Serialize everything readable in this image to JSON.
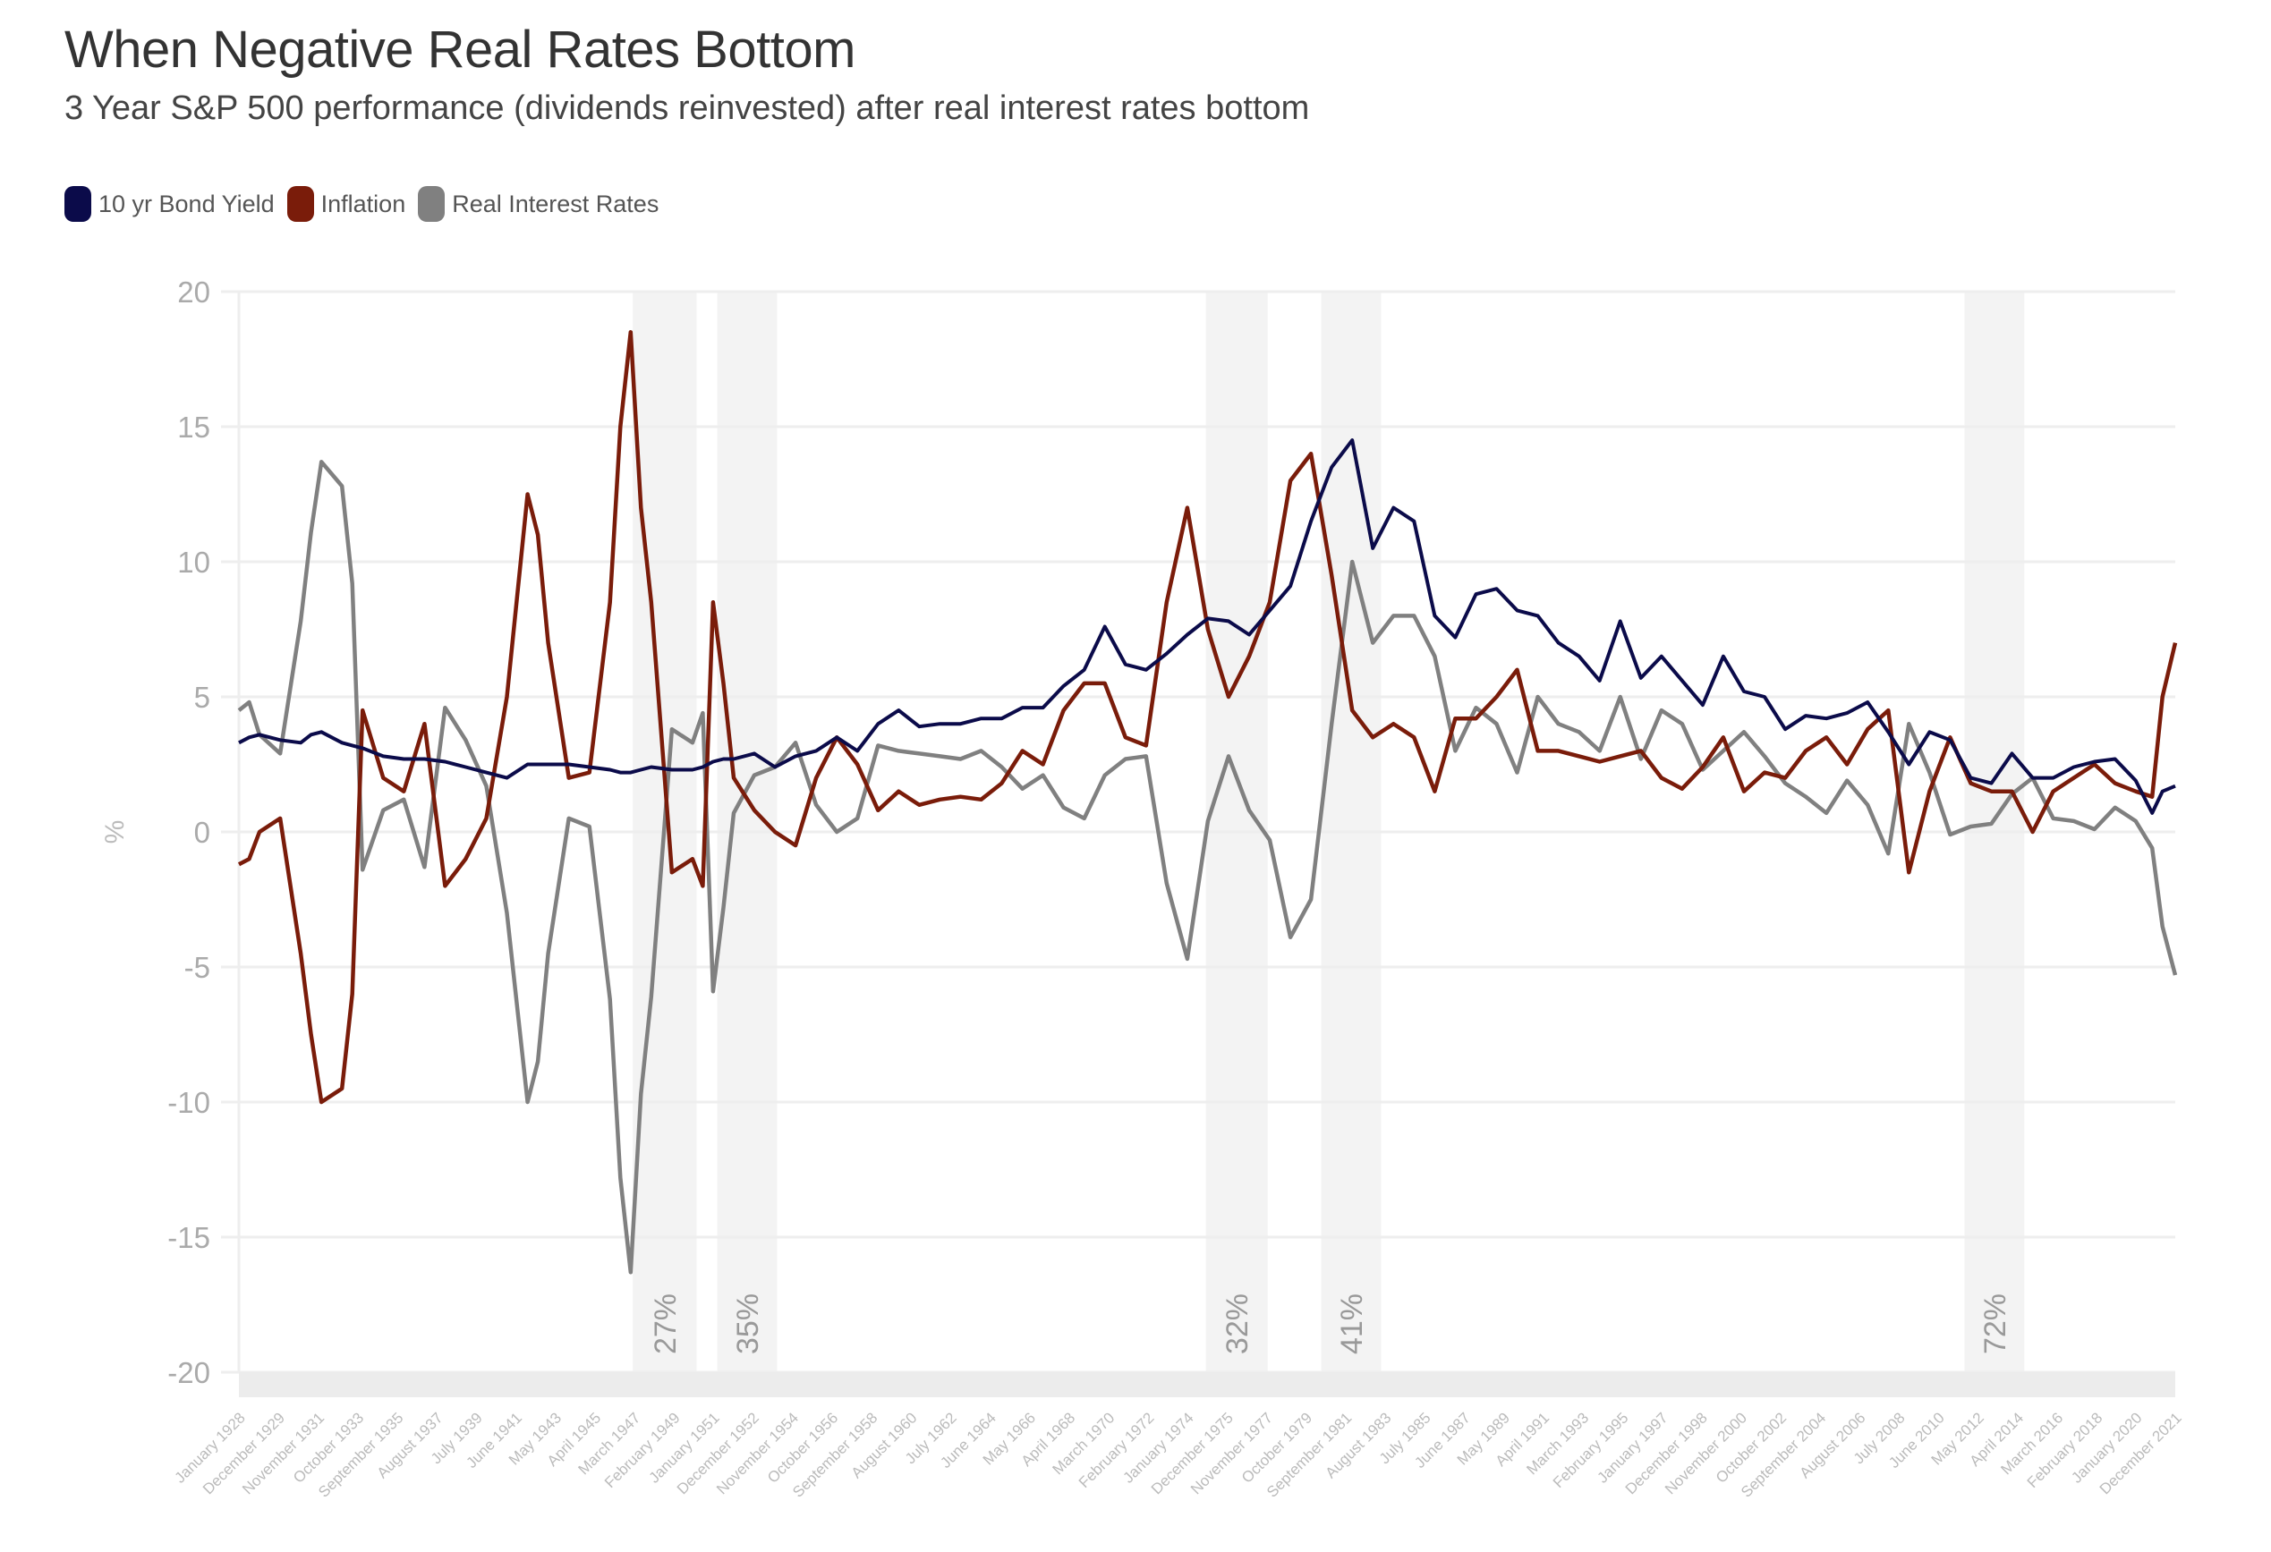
{
  "header": {
    "title": "When Negative Real Rates Bottom",
    "subtitle": "3 Year S&P 500 performance (dividends reinvested) after real interest rates bottom"
  },
  "legend": [
    {
      "name": "10 yr Bond Yield",
      "color": "#0b0b4a"
    },
    {
      "name": "Inflation",
      "color": "#7a1c0a"
    },
    {
      "name": "Real Interest Rates",
      "color": "#808080"
    }
  ],
  "chart_data": {
    "type": "line",
    "title": "When Negative Real Rates Bottom",
    "subtitle": "3 Year S&P 500 performance (dividends reinvested) after real interest rates bottom",
    "xlabel": "",
    "ylabel": "%",
    "ylim": [
      -20,
      20
    ],
    "yticks": [
      20,
      15,
      10,
      5,
      0,
      -5,
      -10,
      -15,
      -20
    ],
    "xlim": [
      1928.0,
      2021.92
    ],
    "grid": true,
    "legend_position": "top-left",
    "xtick_labels": [
      "January 1928",
      "December 1929",
      "November 1931",
      "October 1933",
      "September 1935",
      "August 1937",
      "July 1939",
      "June 1941",
      "May 1943",
      "April 1945",
      "March 1947",
      "February 1949",
      "January 1951",
      "December 1952",
      "November 1954",
      "October 1956",
      "September 1958",
      "August 1960",
      "July 1962",
      "June 1964",
      "May 1966",
      "April 1968",
      "March 1970",
      "February 1972",
      "January 1974",
      "December 1975",
      "November 1977",
      "October 1979",
      "September 1981",
      "August 1983",
      "July 1985",
      "June 1987",
      "May 1989",
      "April 1991",
      "March 1993",
      "February 1995",
      "January 1997",
      "December 1998",
      "November 2000",
      "October 2002",
      "September 2004",
      "August 2006",
      "July 2008",
      "June 2010",
      "May 2012",
      "April 2014",
      "March 2016",
      "February 2018",
      "January 2020",
      "December 2021"
    ],
    "highlight_bands": [
      {
        "start": 1947.1,
        "end": 1950.2,
        "label": "27%"
      },
      {
        "start": 1951.2,
        "end": 1954.1,
        "label": "35%"
      },
      {
        "start": 1974.9,
        "end": 1977.9,
        "label": "32%"
      },
      {
        "start": 1980.5,
        "end": 1983.4,
        "label": "41%"
      },
      {
        "start": 2011.7,
        "end": 2014.6,
        "label": "72%"
      }
    ],
    "x": [
      1928,
      1928.5,
      1929,
      1930,
      1931,
      1931.5,
      1932,
      1933,
      1933.5,
      1934,
      1935,
      1936,
      1937,
      1938,
      1939,
      1940,
      1941,
      1942,
      1942.5,
      1943,
      1944,
      1945,
      1946,
      1946.5,
      1947,
      1947.5,
      1948,
      1949,
      1950,
      1950.5,
      1951,
      1951.5,
      1952,
      1953,
      1954,
      1955,
      1956,
      1957,
      1958,
      1959,
      1960,
      1961,
      1962,
      1963,
      1964,
      1965,
      1966,
      1967,
      1968,
      1969,
      1970,
      1971,
      1972,
      1973,
      1974,
      1975,
      1976,
      1977,
      1978,
      1979,
      1980,
      1981,
      1982,
      1983,
      1984,
      1985,
      1986,
      1987,
      1988,
      1989,
      1990,
      1991,
      1992,
      1993,
      1994,
      1995,
      1996,
      1997,
      1998,
      1999,
      2000,
      2001,
      2002,
      2003,
      2004,
      2005,
      2006,
      2007,
      2008,
      2009,
      2010,
      2011,
      2012,
      2013,
      2014,
      2015,
      2016,
      2017,
      2018,
      2019,
      2020,
      2020.8,
      2021.3,
      2021.92
    ],
    "series": [
      {
        "name": "10 yr Bond Yield",
        "color": "#0b0b4a",
        "values": [
          3.3,
          3.5,
          3.6,
          3.4,
          3.3,
          3.6,
          3.7,
          3.3,
          3.2,
          3.1,
          2.8,
          2.7,
          2.7,
          2.6,
          2.4,
          2.2,
          2.0,
          2.5,
          2.5,
          2.5,
          2.5,
          2.4,
          2.3,
          2.2,
          2.2,
          2.3,
          2.4,
          2.3,
          2.3,
          2.4,
          2.6,
          2.7,
          2.7,
          2.9,
          2.4,
          2.8,
          3.0,
          3.5,
          3.0,
          4.0,
          4.5,
          3.9,
          4.0,
          4.0,
          4.2,
          4.2,
          4.6,
          4.6,
          5.4,
          6.0,
          7.6,
          6.2,
          6.0,
          6.6,
          7.3,
          7.9,
          7.8,
          7.3,
          8.2,
          9.1,
          11.5,
          13.5,
          14.5,
          10.5,
          12.0,
          11.5,
          8.0,
          7.2,
          8.8,
          9.0,
          8.2,
          8.0,
          7.0,
          6.5,
          5.6,
          7.8,
          5.7,
          6.5,
          5.6,
          4.7,
          6.5,
          5.2,
          5.0,
          3.8,
          4.3,
          4.2,
          4.4,
          4.8,
          3.7,
          2.5,
          3.7,
          3.4,
          2.0,
          1.8,
          2.9,
          2.0,
          2.0,
          2.4,
          2.6,
          2.7,
          1.9,
          0.7,
          1.5,
          1.7
        ]
      },
      {
        "name": "Inflation",
        "color": "#7a1c0a",
        "values": [
          -1.2,
          -1.0,
          0.0,
          0.5,
          -4.5,
          -7.5,
          -10.0,
          -9.5,
          -6.0,
          4.5,
          2.0,
          1.5,
          4.0,
          -2.0,
          -1.0,
          0.5,
          5.0,
          12.5,
          11.0,
          7.0,
          2.0,
          2.2,
          8.5,
          15.0,
          18.5,
          12.0,
          8.5,
          -1.5,
          -1.0,
          -2.0,
          8.5,
          5.5,
          2.0,
          0.8,
          0.0,
          -0.5,
          2.0,
          3.5,
          2.5,
          0.8,
          1.5,
          1.0,
          1.2,
          1.3,
          1.2,
          1.8,
          3.0,
          2.5,
          4.5,
          5.5,
          5.5,
          3.5,
          3.2,
          8.5,
          12.0,
          7.5,
          5.0,
          6.5,
          8.5,
          13.0,
          14.0,
          9.5,
          4.5,
          3.5,
          4.0,
          3.5,
          1.5,
          4.2,
          4.2,
          5.0,
          6.0,
          3.0,
          3.0,
          2.8,
          2.6,
          2.8,
          3.0,
          2.0,
          1.6,
          2.4,
          3.5,
          1.5,
          2.2,
          2.0,
          3.0,
          3.5,
          2.5,
          3.8,
          4.5,
          -1.5,
          1.5,
          3.5,
          1.8,
          1.5,
          1.5,
          0.0,
          1.5,
          2.0,
          2.5,
          1.8,
          1.5,
          1.3,
          5.0,
          7.0
        ]
      },
      {
        "name": "Real Interest Rates",
        "color": "#808080",
        "values": [
          4.5,
          4.8,
          3.6,
          2.9,
          7.8,
          11.1,
          13.7,
          12.8,
          9.2,
          -1.4,
          0.8,
          1.2,
          -1.3,
          4.6,
          3.4,
          1.7,
          -3.0,
          -10.0,
          -8.5,
          -4.5,
          0.5,
          0.2,
          -6.2,
          -12.8,
          -16.3,
          -9.7,
          -6.1,
          3.8,
          3.3,
          4.4,
          -5.9,
          -2.8,
          0.7,
          2.1,
          2.4,
          3.3,
          1.0,
          0.0,
          0.5,
          3.2,
          3.0,
          2.9,
          2.8,
          2.7,
          3.0,
          2.4,
          1.6,
          2.1,
          0.9,
          0.5,
          2.1,
          2.7,
          2.8,
          -1.9,
          -4.7,
          0.4,
          2.8,
          0.8,
          -0.3,
          -3.9,
          -2.5,
          4.0,
          10.0,
          7.0,
          8.0,
          8.0,
          6.5,
          3.0,
          4.6,
          4.0,
          2.2,
          5.0,
          4.0,
          3.7,
          3.0,
          5.0,
          2.7,
          4.5,
          4.0,
          2.3,
          3.0,
          3.7,
          2.8,
          1.8,
          1.3,
          0.7,
          1.9,
          1.0,
          -0.8,
          4.0,
          2.2,
          -0.1,
          0.2,
          0.3,
          1.4,
          2.0,
          0.5,
          0.4,
          0.1,
          0.9,
          0.4,
          -0.6,
          -3.5,
          -5.3
        ]
      }
    ]
  }
}
